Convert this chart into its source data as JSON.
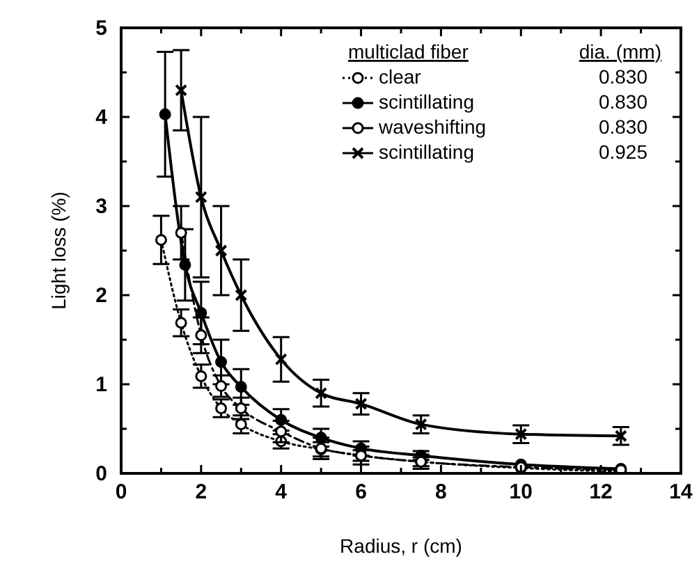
{
  "chart_data": {
    "type": "line",
    "xlabel": "Radius, r (cm)",
    "ylabel": "Light loss (%)",
    "legend_title": "multiclad fiber",
    "legend": "top right",
    "xlim": [
      0,
      14
    ],
    "ylim": [
      0,
      5
    ],
    "xticks": [
      0,
      {
        "value": 1,
        "label": null
      },
      2,
      {
        "value": 3,
        "label": null
      },
      4,
      {
        "value": 5,
        "label": null
      },
      6,
      {
        "value": 7,
        "label": null
      },
      8,
      {
        "value": 9,
        "label": null
      },
      10,
      {
        "value": 11,
        "label": null
      },
      12,
      {
        "value": 13,
        "label": null
      },
      14
    ],
    "yticks": [
      0,
      {
        "value": 0.5,
        "label": null
      },
      1,
      {
        "value": 1.5,
        "label": null
      },
      2,
      {
        "value": 2.5,
        "label": null
      },
      3,
      {
        "value": 3.5,
        "label": null
      },
      4,
      {
        "value": 4.5,
        "label": null
      },
      5
    ],
    "annotations": [
      "dia. (mm)",
      "0.830",
      "0.830",
      "0.830",
      "0.925"
    ],
    "series": [
      {
        "name": "clear",
        "color": "#000000",
        "line_style": "dotted",
        "marker": "circle",
        "x": [
          1.0,
          1.5,
          2.0,
          2.5,
          3,
          4,
          5,
          6,
          7.5,
          10,
          12.5
        ],
        "values": [
          2.62,
          1.69,
          1.09,
          0.73,
          0.55,
          0.36,
          0.27,
          0.2,
          0.13,
          0.06,
          0.02
        ],
        "errors": [
          0.27,
          0.15,
          0.13,
          0.1,
          0.1,
          0.08,
          0.08,
          0.06,
          0.05,
          null,
          null
        ]
      },
      {
        "name": "scintillating",
        "color": "#000000",
        "line_style": "solid",
        "marker": "circle",
        "x": [
          1.1,
          1.6,
          2.0,
          2.5,
          3,
          4,
          5,
          6,
          7.5,
          10,
          12.5
        ],
        "values": [
          4.03,
          2.34,
          1.8,
          1.25,
          0.97,
          0.6,
          0.4,
          0.28,
          0.2,
          0.1,
          0.05
        ],
        "errors": [
          0.7,
          0.4,
          0.35,
          0.25,
          0.2,
          0.12,
          0.1,
          0.08,
          0.05,
          null,
          null
        ]
      },
      {
        "name": "waveshifting",
        "color": "#000000",
        "line_style": "dashed",
        "marker": "circle",
        "x": [
          1.5,
          2.0,
          2.5,
          3,
          4,
          5,
          6,
          7.5,
          10,
          12.5
        ],
        "values": [
          2.7,
          1.55,
          0.98,
          0.73,
          0.47,
          0.28,
          0.2,
          0.13,
          0.07,
          0.04
        ],
        "errors": [
          0.3,
          0.2,
          0.12,
          0.12,
          0.12,
          0.12,
          0.1,
          0.08,
          null,
          null
        ]
      },
      {
        "name": "scintillating",
        "color": "#000000",
        "line_style": "solid",
        "marker": "cross",
        "x": [
          1.5,
          2.0,
          2.5,
          3,
          4,
          5,
          6,
          7.5,
          10,
          12.5
        ],
        "values": [
          4.3,
          3.1,
          2.5,
          2.0,
          1.28,
          0.9,
          0.78,
          0.55,
          0.44,
          0.42
        ],
        "errors": [
          0.45,
          0.9,
          0.5,
          0.4,
          0.25,
          0.15,
          0.12,
          0.1,
          0.1,
          0.1
        ]
      }
    ]
  }
}
